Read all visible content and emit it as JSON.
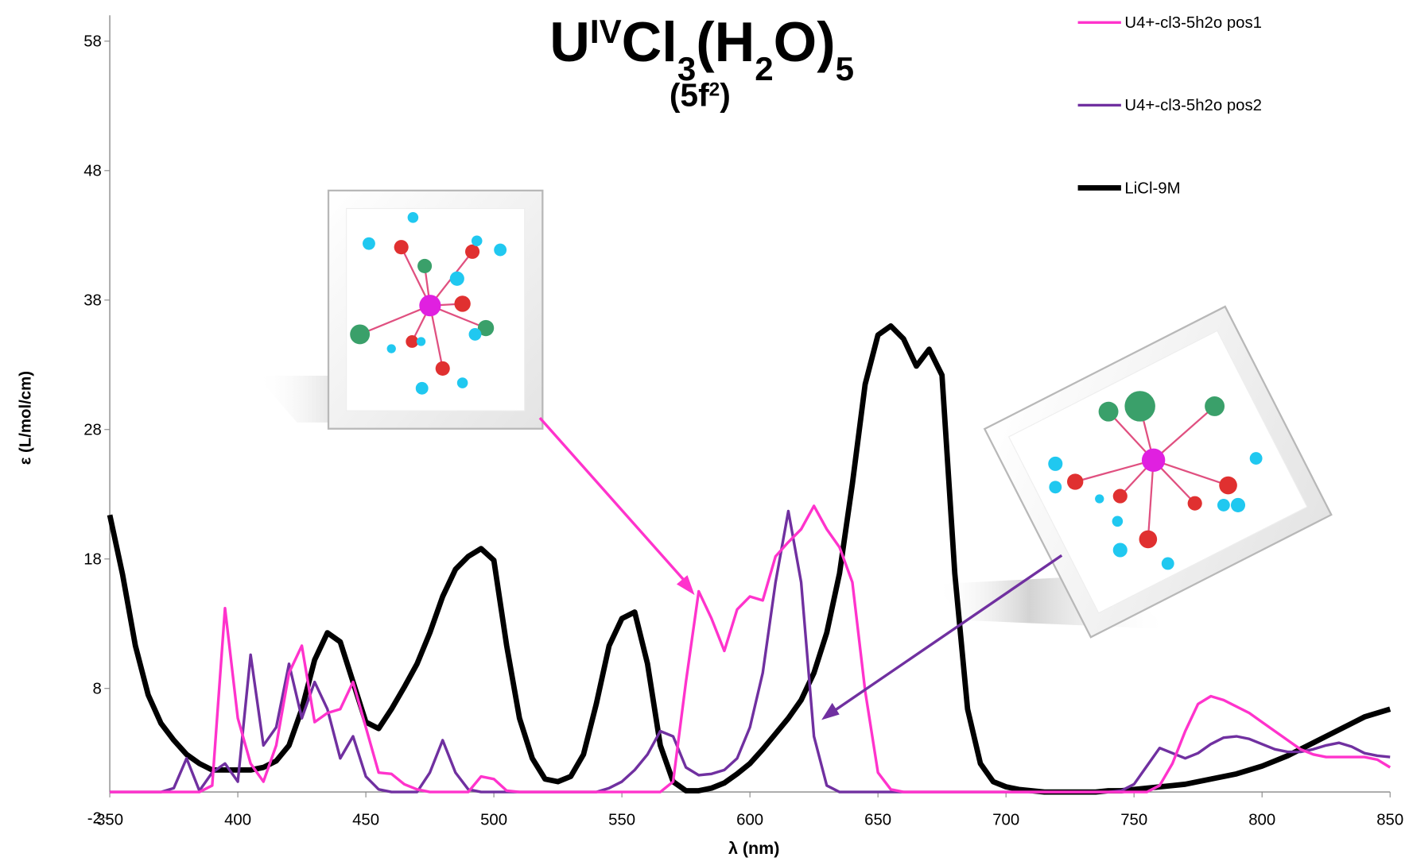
{
  "chart_data": {
    "type": "line",
    "title_parts": [
      {
        "text": "U"
      },
      {
        "text": "IV",
        "style": "sup"
      },
      {
        "text": "Cl"
      },
      {
        "text": "3",
        "style": "sub"
      },
      {
        "text": "(H"
      },
      {
        "text": "2",
        "style": "sub"
      },
      {
        "text": "O)"
      },
      {
        "text": "5",
        "style": "sub"
      }
    ],
    "subtitle_parts": [
      {
        "text": "(5f"
      },
      {
        "text": "2",
        "style": "sup"
      },
      {
        "text": ")"
      }
    ],
    "x_label": "λ (nm)",
    "y_label": "ε (L/mol/cm)",
    "xlim": [
      350,
      850
    ],
    "ylim": [
      -2,
      60
    ],
    "xticks": [
      350,
      400,
      450,
      500,
      550,
      600,
      650,
      700,
      750,
      800,
      850
    ],
    "yticks": [
      -2,
      8,
      18,
      28,
      38,
      48,
      58
    ],
    "xaxis_crosses": 0,
    "grid": false,
    "legend_position": "top-right",
    "x": [
      350,
      355,
      360,
      365,
      370,
      375,
      380,
      385,
      390,
      395,
      400,
      405,
      410,
      415,
      420,
      425,
      430,
      435,
      440,
      445,
      450,
      455,
      460,
      465,
      470,
      475,
      480,
      485,
      490,
      495,
      500,
      505,
      510,
      515,
      520,
      525,
      530,
      535,
      540,
      545,
      550,
      555,
      560,
      565,
      570,
      575,
      580,
      585,
      590,
      595,
      600,
      605,
      610,
      615,
      620,
      625,
      630,
      635,
      640,
      645,
      650,
      655,
      660,
      665,
      670,
      675,
      680,
      685,
      690,
      695,
      700,
      705,
      710,
      715,
      720,
      725,
      730,
      735,
      740,
      745,
      750,
      755,
      760,
      765,
      770,
      775,
      780,
      785,
      790,
      795,
      800,
      805,
      810,
      815,
      820,
      825,
      830,
      835,
      840,
      845,
      850
    ],
    "series": [
      {
        "name": "U4+-cl3-5h2o pos1",
        "color": "#ff33cc",
        "width": 3,
        "values": [
          0,
          0,
          0,
          0,
          0,
          0,
          0,
          0,
          0.5,
          14.2,
          5.7,
          2.2,
          0.8,
          3.6,
          9.2,
          11.3,
          5.4,
          6.1,
          6.4,
          8.5,
          5.0,
          1.5,
          1.4,
          0.6,
          0.2,
          0,
          0,
          0,
          0,
          1.2,
          1.0,
          0.1,
          0,
          0,
          0,
          0,
          0,
          0,
          0,
          0,
          0,
          0,
          0,
          0,
          0.8,
          8.5,
          15.5,
          13.4,
          10.9,
          14.1,
          15.1,
          14.8,
          18.2,
          19.3,
          20.3,
          22.1,
          20.3,
          18.9,
          16.2,
          7.8,
          1.5,
          0.2,
          0,
          0,
          0,
          0,
          0,
          0,
          0,
          0,
          0,
          0,
          0,
          0,
          0,
          0,
          0,
          0,
          0,
          0,
          0,
          0,
          0.5,
          2.2,
          4.7,
          6.8,
          7.4,
          7.1,
          6.6,
          6.1,
          5.4,
          4.7,
          4.0,
          3.3,
          2.9,
          2.7,
          2.7,
          2.7,
          2.7,
          2.5,
          1.9
        ]
      },
      {
        "name": "U4+-cl3-5h2o pos2",
        "color": "#7030a0",
        "width": 3,
        "values": [
          0,
          0,
          0,
          0,
          0,
          0.3,
          2.6,
          0.1,
          1.5,
          2.2,
          0.8,
          10.6,
          3.6,
          5.0,
          9.9,
          5.7,
          8.5,
          6.4,
          2.6,
          4.3,
          1.2,
          0.2,
          0,
          0,
          0,
          1.5,
          4.0,
          1.5,
          0.2,
          0,
          0,
          0,
          0,
          0,
          0,
          0,
          0,
          0,
          0,
          0.3,
          0.8,
          1.7,
          2.9,
          4.7,
          4.3,
          1.9,
          1.3,
          1.4,
          1.7,
          2.6,
          5.0,
          9.2,
          16.2,
          21.7,
          16.2,
          4.3,
          0.5,
          0,
          0,
          0,
          0,
          0,
          0,
          0,
          0,
          0,
          0,
          0,
          0,
          0,
          0,
          0,
          0,
          0,
          0,
          0,
          0,
          0,
          0,
          0.1,
          0.6,
          2.0,
          3.4,
          3.0,
          2.6,
          3.0,
          3.7,
          4.2,
          4.3,
          4.1,
          3.7,
          3.3,
          3.1,
          3.1,
          3.3,
          3.6,
          3.8,
          3.5,
          3.0,
          2.8,
          2.7
        ]
      },
      {
        "name": "LiCl-9M",
        "color": "#000000",
        "width": 6,
        "values": [
          21.4,
          16.8,
          11.3,
          7.5,
          5.3,
          4.0,
          2.9,
          2.2,
          1.7,
          1.7,
          1.7,
          1.7,
          1.9,
          2.4,
          3.6,
          6.4,
          10.2,
          12.3,
          11.6,
          8.5,
          5.4,
          4.9,
          6.4,
          8.1,
          9.9,
          12.3,
          15.1,
          17.2,
          18.2,
          18.8,
          17.9,
          11.3,
          5.7,
          2.6,
          1.0,
          0.8,
          1.2,
          2.9,
          6.8,
          11.3,
          13.4,
          13.9,
          9.9,
          3.6,
          0.8,
          0.1,
          0.1,
          0.3,
          0.7,
          1.4,
          2.2,
          3.3,
          4.5,
          5.7,
          7.1,
          9.2,
          12.3,
          16.9,
          23.8,
          31.5,
          35.3,
          36.0,
          35.0,
          32.9,
          34.2,
          32.2,
          16.9,
          6.4,
          2.2,
          0.8,
          0.4,
          0.2,
          0.1,
          0,
          0,
          0,
          0,
          0,
          0.1,
          0.1,
          0.2,
          0.3,
          0.4,
          0.5,
          0.6,
          0.8,
          1.0,
          1.2,
          1.4,
          1.7,
          2.0,
          2.4,
          2.8,
          3.3,
          3.8,
          4.3,
          4.8,
          5.3,
          5.8,
          6.1,
          6.4
        ]
      }
    ]
  }
}
